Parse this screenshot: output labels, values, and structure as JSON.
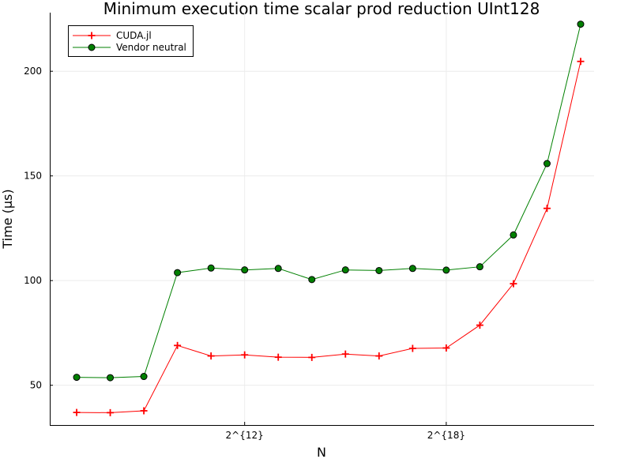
{
  "chart_data": {
    "type": "line",
    "title": "Minimum execution time scalar prod reduction UInt128",
    "xlabel": "N",
    "ylabel": "Time (μs)",
    "x": [
      7,
      8,
      9,
      10,
      11,
      12,
      13,
      14,
      15,
      16,
      17,
      18,
      19,
      20,
      21,
      22
    ],
    "xlim": [
      6.2,
      22.4
    ],
    "ylim": [
      31,
      228
    ],
    "xticks": [
      {
        "value": 12,
        "label": "2^{12}"
      },
      {
        "value": 18,
        "label": "2^{18}"
      }
    ],
    "yticks": [
      50,
      100,
      150,
      200
    ],
    "grid": true,
    "legend_position": "top-left",
    "series": [
      {
        "name": "CUDA.jl",
        "color": "#ff0000",
        "marker": "cross",
        "values": [
          37,
          36.9,
          37.8,
          69,
          64,
          64.5,
          63.4,
          63.3,
          64.9,
          64,
          67.6,
          67.8,
          78.7,
          98.5,
          134.5,
          204.7
        ]
      },
      {
        "name": "Vendor neutral",
        "color": "#008000",
        "marker": "circle",
        "values": [
          53.8,
          53.6,
          54.2,
          103.8,
          106,
          105.1,
          105.8,
          100.5,
          105.1,
          104.8,
          105.8,
          105,
          106.6,
          121.8,
          155.9,
          222.5
        ]
      }
    ]
  }
}
